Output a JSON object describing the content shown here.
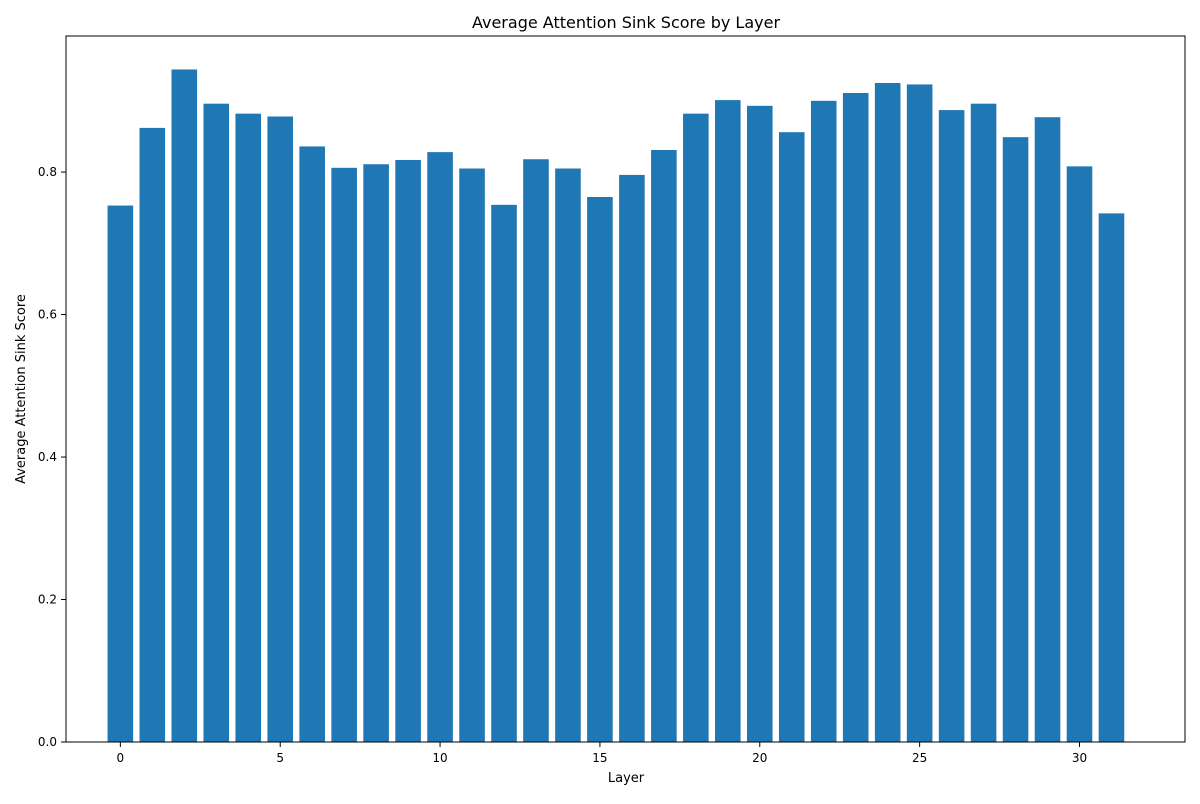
{
  "chart_data": {
    "type": "bar",
    "title": "Average Attention Sink Score by Layer",
    "xlabel": "Layer",
    "ylabel": "Average Attention Sink Score",
    "x": [
      0,
      1,
      2,
      3,
      4,
      5,
      6,
      7,
      8,
      9,
      10,
      11,
      12,
      13,
      14,
      15,
      16,
      17,
      18,
      19,
      20,
      21,
      22,
      23,
      24,
      25,
      26,
      27,
      28,
      29,
      30,
      31
    ],
    "values": [
      0.753,
      0.862,
      0.944,
      0.896,
      0.882,
      0.878,
      0.836,
      0.806,
      0.811,
      0.817,
      0.828,
      0.805,
      0.754,
      0.818,
      0.805,
      0.765,
      0.796,
      0.831,
      0.882,
      0.901,
      0.893,
      0.856,
      0.9,
      0.911,
      0.925,
      0.923,
      0.887,
      0.896,
      0.849,
      0.877,
      0.808,
      0.742
    ],
    "xlim": [
      -1.7,
      33.3
    ],
    "ylim": [
      0,
      0.991
    ],
    "xticks": [
      0,
      5,
      10,
      15,
      20,
      25,
      30
    ],
    "yticks": [
      0.0,
      0.2,
      0.4,
      0.6,
      0.8
    ],
    "ytick_labels": [
      "0.0",
      "0.2",
      "0.4",
      "0.6",
      "0.8"
    ],
    "grid": false,
    "bar_color": "#1f77b4"
  }
}
